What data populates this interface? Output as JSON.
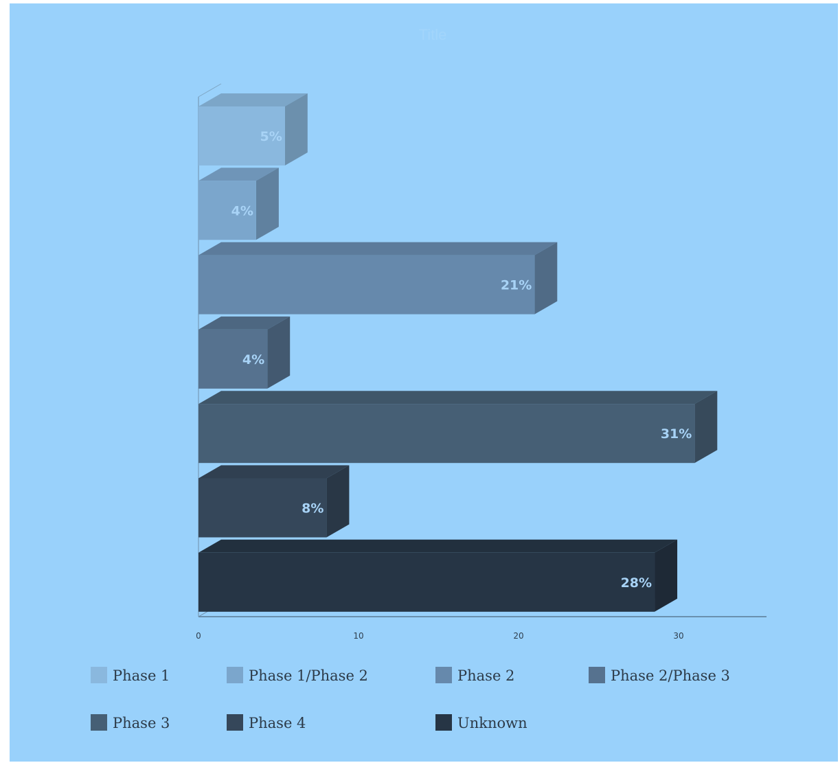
{
  "chart_data": {
    "type": "bar",
    "orientation": "horizontal",
    "three_d": true,
    "title": "Title",
    "categories": [
      "Phase 1",
      "Phase 1/Phase 2",
      "Phase 2",
      "Phase 2/Phase 3",
      "Phase 3",
      "Phase 4",
      "Unknown"
    ],
    "values": [
      5.4,
      3.6,
      21.0,
      4.3,
      31.0,
      8.0,
      28.5
    ],
    "data_labels": [
      "5%",
      "4%",
      "21%",
      "4%",
      "31%",
      "8%",
      "28%"
    ],
    "colors": [
      "#8ab8de",
      "#7ba6cc",
      "#6689ac",
      "#56728f",
      "#465f75",
      "#35475a",
      "#263545"
    ],
    "x_ticks": [
      "0",
      "10",
      "20",
      "30"
    ],
    "xlim": [
      0,
      35
    ],
    "grid": false,
    "legend_position": "bottom"
  }
}
